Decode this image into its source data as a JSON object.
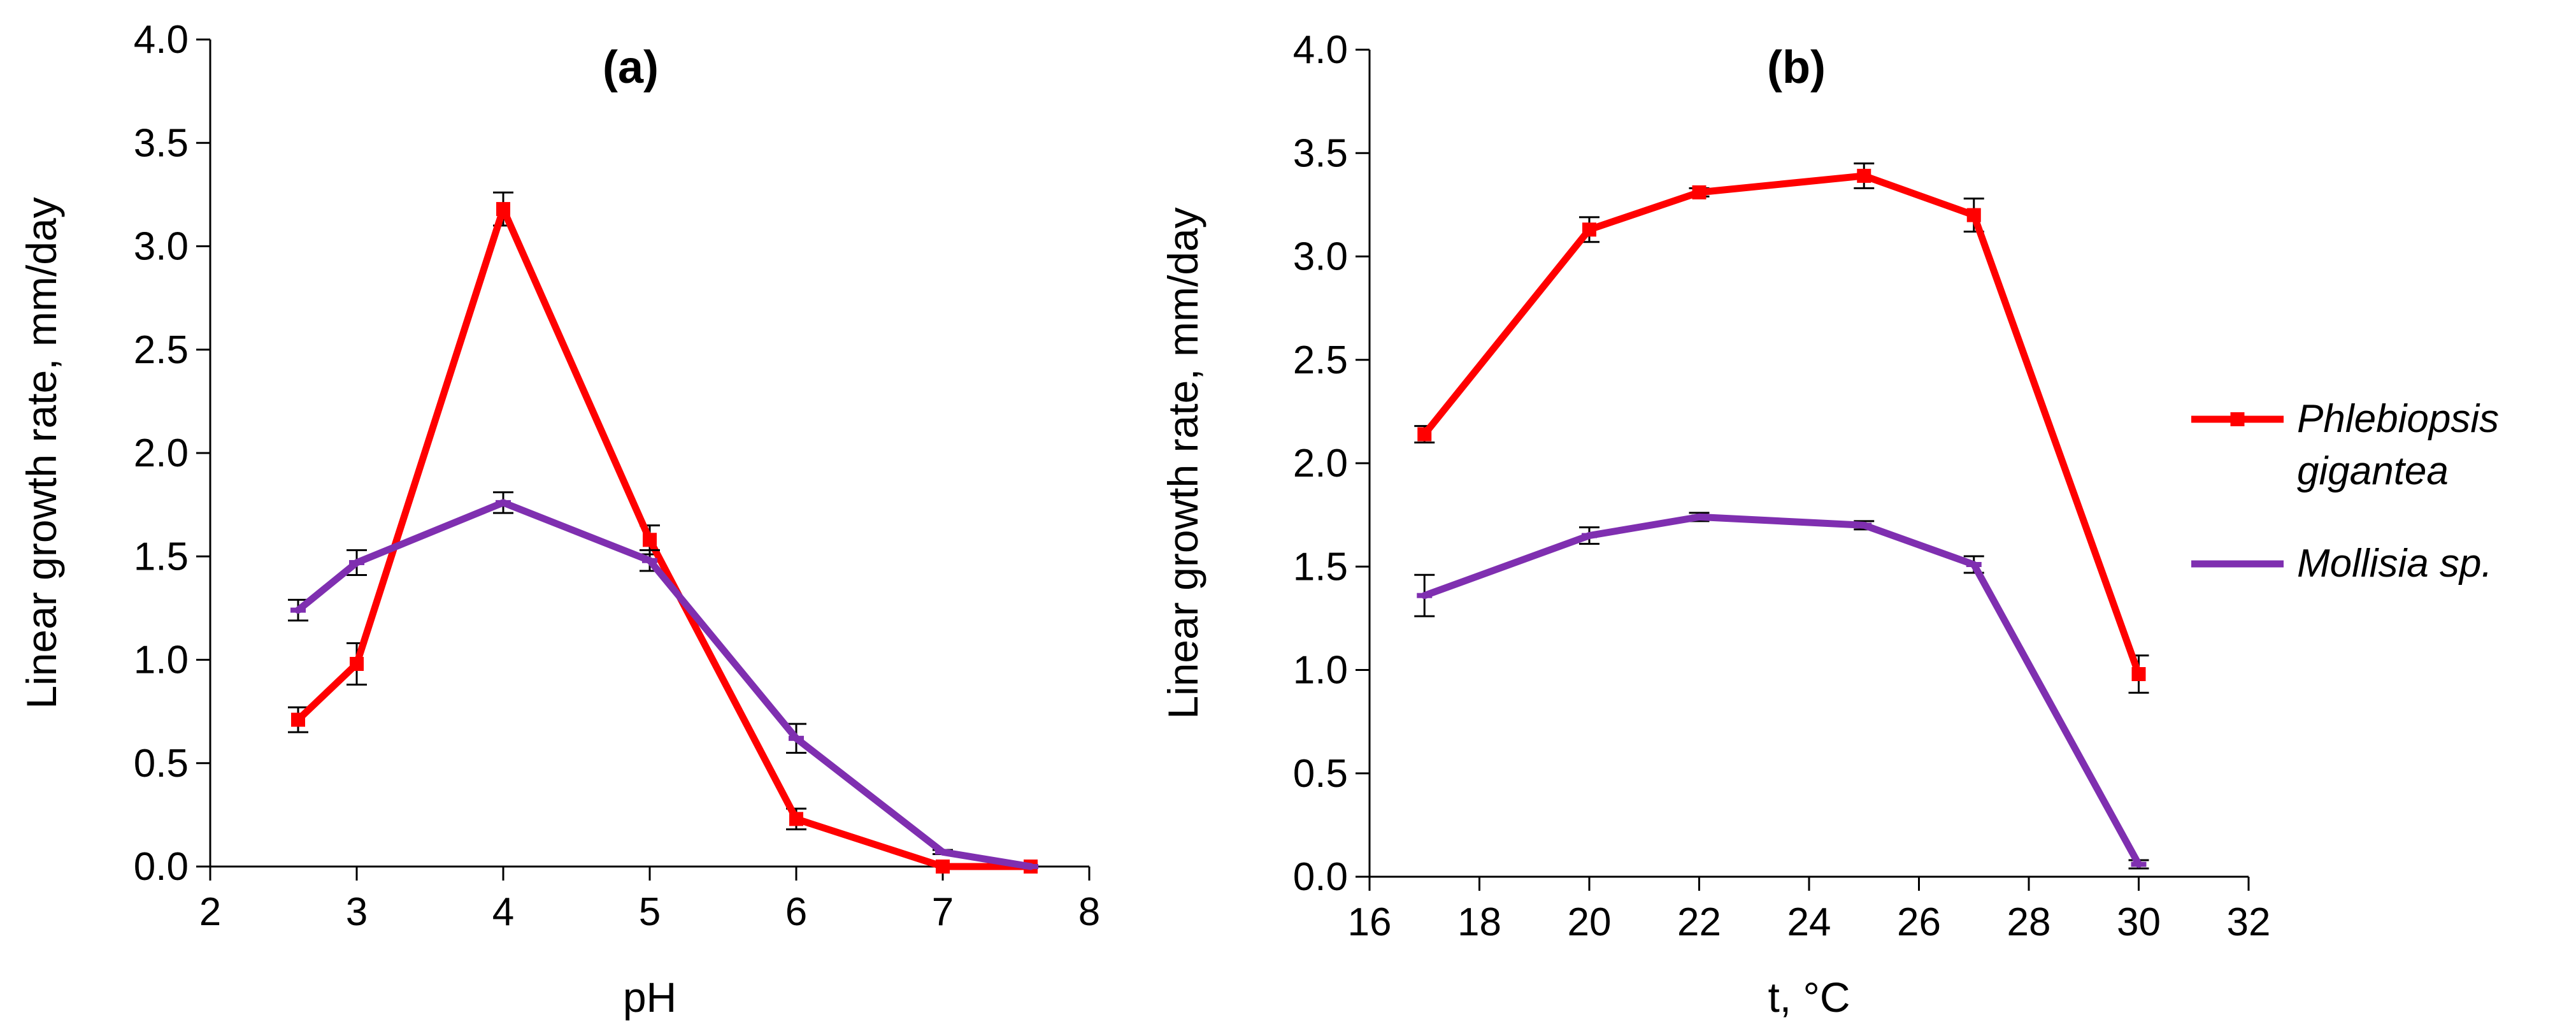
{
  "legend": {
    "entries": [
      {
        "name_lines": [
          "Phlebiopsis",
          "gigantea"
        ],
        "color": "#ff0000",
        "marker": "square"
      },
      {
        "name_lines": [
          "Mollisia sp."
        ],
        "color": "#7f2fb0",
        "marker": "dash"
      }
    ]
  },
  "chart_data": [
    {
      "type": "line",
      "title": "(a)",
      "xlabel": "pH",
      "ylabel": "Linear growth rate, mm/day",
      "xlim": [
        2,
        8
      ],
      "ylim": [
        0,
        4
      ],
      "xticks": [
        2,
        3,
        4,
        5,
        6,
        7,
        8
      ],
      "xtick_labels": [
        "2",
        "3",
        "4",
        "5",
        "6",
        "7",
        "8"
      ],
      "yticks": [
        0,
        0.5,
        1,
        1.5,
        2,
        2.5,
        3,
        3.5,
        4
      ],
      "ytick_labels": [
        "0.0",
        "0.5",
        "1.0",
        "1.5",
        "2.0",
        "2.5",
        "3.0",
        "3.5",
        "4.0"
      ],
      "grid": false,
      "series": [
        {
          "name": "Phlebiopsis gigantea",
          "color": "#ff0000",
          "x": [
            2.6,
            3,
            4,
            5,
            6,
            7,
            7.6
          ],
          "y": [
            0.71,
            0.98,
            3.18,
            1.58,
            0.23,
            0.0,
            0.0
          ],
          "err": [
            0.06,
            0.1,
            0.08,
            0.07,
            0.05,
            0.0,
            0.0
          ]
        },
        {
          "name": "Mollisia sp.",
          "color": "#7f2fb0",
          "x": [
            2.6,
            3,
            4,
            5,
            6,
            7,
            7.6
          ],
          "y": [
            1.24,
            1.47,
            1.76,
            1.48,
            0.62,
            0.07,
            0.0
          ],
          "err": [
            0.05,
            0.06,
            0.05,
            0.05,
            0.07,
            0.01,
            0.0
          ]
        }
      ]
    },
    {
      "type": "line",
      "title": "(b)",
      "xlabel": "t, °C",
      "ylabel": "Linear growth rate, mm/day",
      "xlim": [
        16,
        32
      ],
      "ylim": [
        0,
        4
      ],
      "xticks": [
        16,
        18,
        20,
        22,
        24,
        26,
        28,
        30,
        32
      ],
      "xtick_labels": [
        "16",
        "18",
        "20",
        "22",
        "24",
        "26",
        "28",
        "30",
        "32"
      ],
      "yticks": [
        0,
        0.5,
        1,
        1.5,
        2,
        2.5,
        3,
        3.5,
        4
      ],
      "ytick_labels": [
        "0.0",
        "0.5",
        "1.0",
        "1.5",
        "2.0",
        "2.5",
        "3.0",
        "3.5",
        "4.0"
      ],
      "grid": false,
      "series": [
        {
          "name": "Phlebiopsis gigantea",
          "color": "#ff0000",
          "x": [
            17,
            20,
            22,
            25,
            27,
            30
          ],
          "y": [
            2.14,
            3.13,
            3.31,
            3.39,
            3.2,
            0.98
          ],
          "err": [
            0.04,
            0.06,
            0.02,
            0.06,
            0.08,
            0.09
          ]
        },
        {
          "name": "Mollisia sp.",
          "color": "#7f2fb0",
          "x": [
            17,
            20,
            22,
            25,
            27,
            30
          ],
          "y": [
            1.36,
            1.65,
            1.74,
            1.7,
            1.51,
            0.06
          ],
          "err": [
            0.1,
            0.04,
            0.02,
            0.02,
            0.04,
            0.02
          ]
        }
      ]
    }
  ]
}
